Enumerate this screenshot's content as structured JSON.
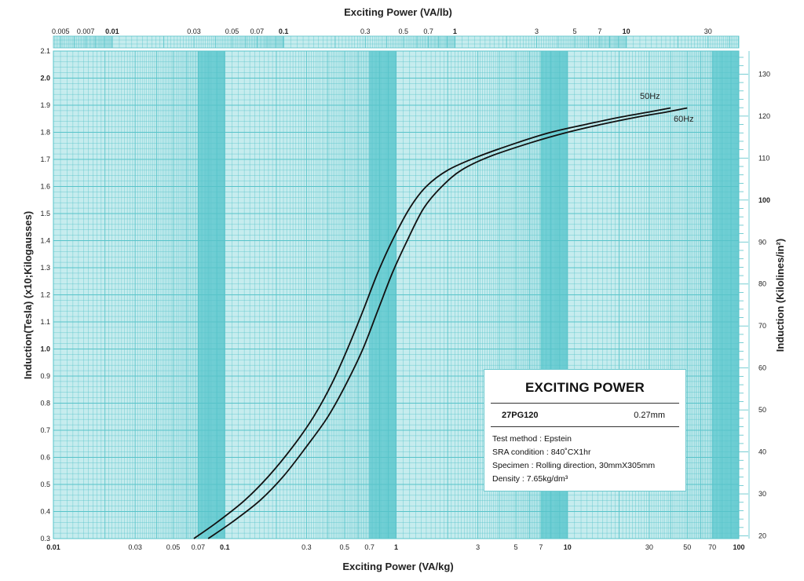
{
  "chart_data": {
    "type": "line",
    "title": "",
    "xlabel": "Exciting Power (VA/kg)",
    "xlabel_top": "Exciting Power (VA/lb)",
    "ylabel": "Induction(Tesla) (x10;Kilogausses)",
    "ylabel_right": "Induction (Kilolines/in²)",
    "xscale": "log",
    "xlim": [
      0.01,
      100
    ],
    "ylim": [
      0.3,
      2.1
    ],
    "ylim_right": [
      19.35,
      135.5
    ],
    "grid": true,
    "bottom_ticks": [
      "0.01",
      "0.03",
      "0.05",
      "0.07",
      "0.1",
      "0.3",
      "0.5",
      "0.7",
      "1",
      "3",
      "5",
      "7",
      "10",
      "30",
      "50",
      "70",
      "100"
    ],
    "bottom_ticks_bold": [
      "0.01",
      "0.1",
      "1",
      "10",
      "100"
    ],
    "top_ticks": [
      "0.005",
      "0.007",
      "0.01",
      "0.03",
      "0.05",
      "0.07",
      "0.1",
      "0.3",
      "0.5",
      "0.7",
      "1",
      "3",
      "5",
      "7",
      "10",
      "30"
    ],
    "top_ticks_bold": [
      "0.01",
      "0.1",
      "1",
      "10"
    ],
    "left_ticks": [
      "0.3",
      "0.4",
      "0.5",
      "0.6",
      "0.7",
      "0.8",
      "0.9",
      "1.0",
      "1.1",
      "1.2",
      "1.3",
      "1.4",
      "1.5",
      "1.6",
      "1.7",
      "1.8",
      "1.9",
      "2.0",
      "2.1"
    ],
    "left_ticks_bold": [
      "1.0",
      "2.0"
    ],
    "right_ticks": [
      "20",
      "30",
      "40",
      "50",
      "60",
      "70",
      "80",
      "90",
      "100",
      "110",
      "120",
      "130"
    ],
    "right_ticks_bold": [
      "100"
    ],
    "series": [
      {
        "name": "50Hz",
        "x": [
          0.066,
          0.09,
          0.13,
          0.18,
          0.25,
          0.33,
          0.42,
          0.52,
          0.64,
          0.78,
          0.95,
          1.2,
          1.5,
          2.0,
          3.0,
          5.0,
          8.0,
          13.0,
          20.0,
          30.0,
          40.0
        ],
        "y": [
          0.3,
          0.36,
          0.44,
          0.53,
          0.64,
          0.75,
          0.87,
          1.0,
          1.14,
          1.28,
          1.4,
          1.52,
          1.6,
          1.66,
          1.71,
          1.76,
          1.8,
          1.83,
          1.855,
          1.875,
          1.89
        ]
      },
      {
        "name": "60Hz",
        "x": [
          0.08,
          0.11,
          0.16,
          0.22,
          0.3,
          0.4,
          0.51,
          0.64,
          0.78,
          0.95,
          1.16,
          1.45,
          1.85,
          2.4,
          3.5,
          6.0,
          10.0,
          16.0,
          25.0,
          38.0,
          50.0
        ],
        "y": [
          0.3,
          0.36,
          0.44,
          0.53,
          0.64,
          0.75,
          0.87,
          1.0,
          1.14,
          1.28,
          1.4,
          1.52,
          1.6,
          1.66,
          1.71,
          1.76,
          1.8,
          1.83,
          1.855,
          1.875,
          1.89
        ]
      }
    ],
    "annotations": {
      "curve_50": "50Hz",
      "curve_60": "60Hz"
    }
  },
  "info_box": {
    "title": "EXCITING POWER",
    "grade": "27PG120",
    "thickness": "0.27mm",
    "test_method": "Test method : Epstein",
    "sra": "SRA condition : 840˚CX1hr",
    "specimen": "Specimen : Rolling direction, 30mmX305mm",
    "density": "Density : 7.65kg/dm³"
  },
  "colors": {
    "grid_background": "#3ec1c8",
    "grid_fill": "#c6ecee",
    "grid_line": "#57c3c9",
    "curve": "#111111"
  }
}
